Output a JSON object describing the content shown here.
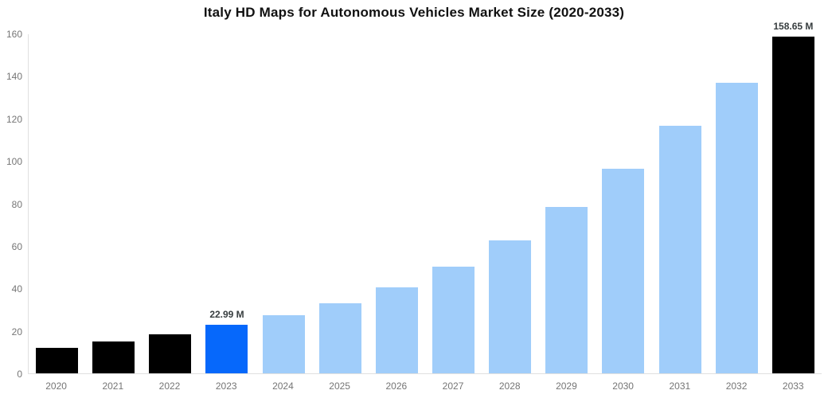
{
  "chart_data": {
    "type": "bar",
    "title": "Italy HD Maps for Autonomous Vehicles Market Size (2020-2033)",
    "xlabel": "",
    "ylabel": "",
    "unit": "M",
    "categories": [
      "2020",
      "2021",
      "2022",
      "2023",
      "2024",
      "2025",
      "2026",
      "2027",
      "2028",
      "2029",
      "2030",
      "2031",
      "2032",
      "2033"
    ],
    "values": [
      12.0,
      15.0,
      18.3,
      22.99,
      27.4,
      33.0,
      40.5,
      50.2,
      62.7,
      78.3,
      96.4,
      116.5,
      136.8,
      158.65
    ],
    "data_labels": [
      null,
      null,
      null,
      "22.99 M",
      null,
      null,
      null,
      null,
      null,
      null,
      null,
      null,
      null,
      "158.65 M"
    ],
    "bar_colors": [
      "#000000",
      "#000000",
      "#000000",
      "#0668fb",
      "#a0cdfa",
      "#a0cdfa",
      "#a0cdfa",
      "#a0cdfa",
      "#a0cdfa",
      "#a0cdfa",
      "#a0cdfa",
      "#a0cdfa",
      "#a0cdfa",
      "#000000"
    ],
    "ylim": [
      0,
      160
    ],
    "yticks": [
      0,
      20,
      40,
      60,
      80,
      100,
      120,
      140,
      160
    ],
    "grid": false,
    "legend": false
  },
  "colors": {
    "past_bars": "#000000",
    "highlight_bar": "#0668fb",
    "forecast_bars": "#a0cdfa",
    "title_text": "#111111",
    "axis_text": "#757575",
    "axis_line": "#e0e0e0",
    "data_label_text": "#373d3f",
    "background": "#ffffff"
  }
}
